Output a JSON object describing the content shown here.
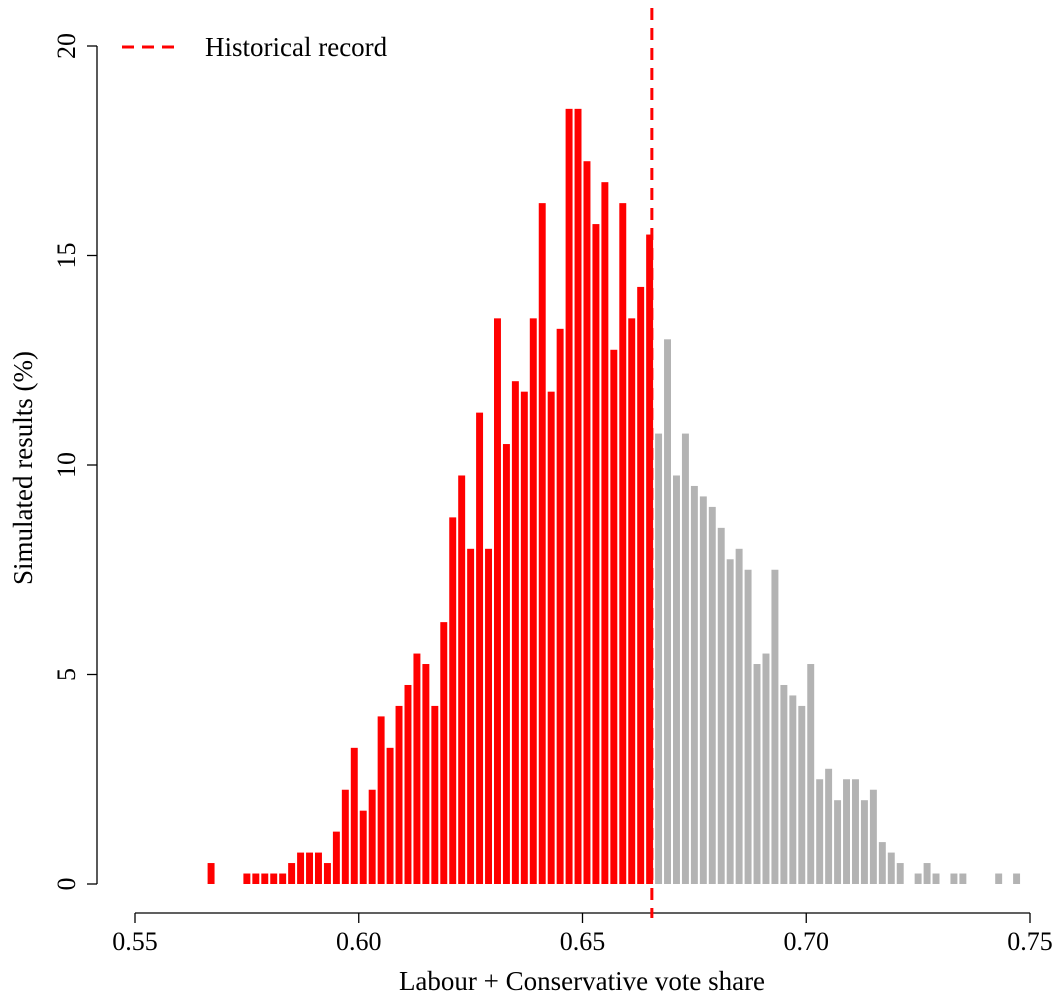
{
  "chart_data": {
    "type": "bar",
    "xlabel": "Labour + Conservative vote share",
    "ylabel": "Simulated results (%)",
    "xlim": [
      0.55,
      0.75
    ],
    "ylim": [
      0,
      20
    ],
    "x_ticks": [
      0.55,
      0.6,
      0.65,
      0.7,
      0.75
    ],
    "x_tick_labels": [
      "0.55",
      "0.60",
      "0.65",
      "0.70",
      "0.75"
    ],
    "y_ticks": [
      0,
      5,
      10,
      15,
      20
    ],
    "y_tick_labels": [
      "0",
      "5",
      "10",
      "15",
      "20"
    ],
    "bin_width": 0.002,
    "reference_line": {
      "x": 0.6655,
      "label": "Historical record",
      "color": "#ff0000",
      "style": "dashed"
    },
    "legend": {
      "position": "top-left",
      "entries": [
        {
          "label": "Historical record",
          "color": "#ff0000",
          "style": "dashed"
        }
      ]
    },
    "series": [
      {
        "color": "#ff0000",
        "bins": [
          [
            0.567,
            0.5
          ],
          [
            0.575,
            0.25
          ],
          [
            0.577,
            0.25
          ],
          [
            0.579,
            0.25
          ],
          [
            0.581,
            0.25
          ],
          [
            0.583,
            0.25
          ],
          [
            0.585,
            0.5
          ],
          [
            0.587,
            0.75
          ],
          [
            0.589,
            0.75
          ],
          [
            0.591,
            0.75
          ],
          [
            0.593,
            0.5
          ],
          [
            0.595,
            1.25
          ],
          [
            0.597,
            2.25
          ],
          [
            0.599,
            3.25
          ],
          [
            0.601,
            1.75
          ],
          [
            0.603,
            2.25
          ],
          [
            0.605,
            4.0
          ],
          [
            0.607,
            3.25
          ],
          [
            0.609,
            4.25
          ],
          [
            0.611,
            4.75
          ],
          [
            0.613,
            5.5
          ],
          [
            0.615,
            5.25
          ],
          [
            0.617,
            4.25
          ],
          [
            0.619,
            6.25
          ],
          [
            0.621,
            8.75
          ],
          [
            0.623,
            9.75
          ],
          [
            0.625,
            8.0
          ],
          [
            0.627,
            11.25
          ],
          [
            0.629,
            8.0
          ],
          [
            0.631,
            13.5
          ],
          [
            0.633,
            10.5
          ],
          [
            0.635,
            12.0
          ],
          [
            0.637,
            11.75
          ],
          [
            0.639,
            13.5
          ],
          [
            0.641,
            16.25
          ],
          [
            0.643,
            11.75
          ],
          [
            0.645,
            13.25
          ],
          [
            0.647,
            18.5
          ],
          [
            0.649,
            18.5
          ],
          [
            0.651,
            17.25
          ],
          [
            0.653,
            15.75
          ],
          [
            0.655,
            16.75
          ],
          [
            0.657,
            12.75
          ],
          [
            0.659,
            16.25
          ],
          [
            0.661,
            13.5
          ],
          [
            0.663,
            14.25
          ],
          [
            0.665,
            15.5
          ]
        ]
      },
      {
        "color": "#b3b3b3",
        "bins": [
          [
            0.667,
            10.75
          ],
          [
            0.669,
            13.0
          ],
          [
            0.671,
            9.75
          ],
          [
            0.673,
            10.75
          ],
          [
            0.675,
            9.5
          ],
          [
            0.677,
            9.25
          ],
          [
            0.679,
            9.0
          ],
          [
            0.681,
            8.5
          ],
          [
            0.683,
            7.75
          ],
          [
            0.685,
            8.0
          ],
          [
            0.687,
            7.5
          ],
          [
            0.689,
            5.25
          ],
          [
            0.691,
            5.5
          ],
          [
            0.693,
            7.5
          ],
          [
            0.695,
            4.75
          ],
          [
            0.697,
            4.5
          ],
          [
            0.699,
            4.25
          ],
          [
            0.701,
            5.25
          ],
          [
            0.703,
            2.5
          ],
          [
            0.705,
            2.75
          ],
          [
            0.707,
            2.0
          ],
          [
            0.709,
            2.5
          ],
          [
            0.711,
            2.5
          ],
          [
            0.713,
            2.0
          ],
          [
            0.715,
            2.25
          ],
          [
            0.717,
            1.0
          ],
          [
            0.719,
            0.75
          ],
          [
            0.721,
            0.5
          ],
          [
            0.725,
            0.25
          ],
          [
            0.727,
            0.5
          ],
          [
            0.729,
            0.25
          ],
          [
            0.733,
            0.25
          ],
          [
            0.735,
            0.25
          ],
          [
            0.743,
            0.25
          ],
          [
            0.747,
            0.25
          ]
        ]
      }
    ]
  }
}
